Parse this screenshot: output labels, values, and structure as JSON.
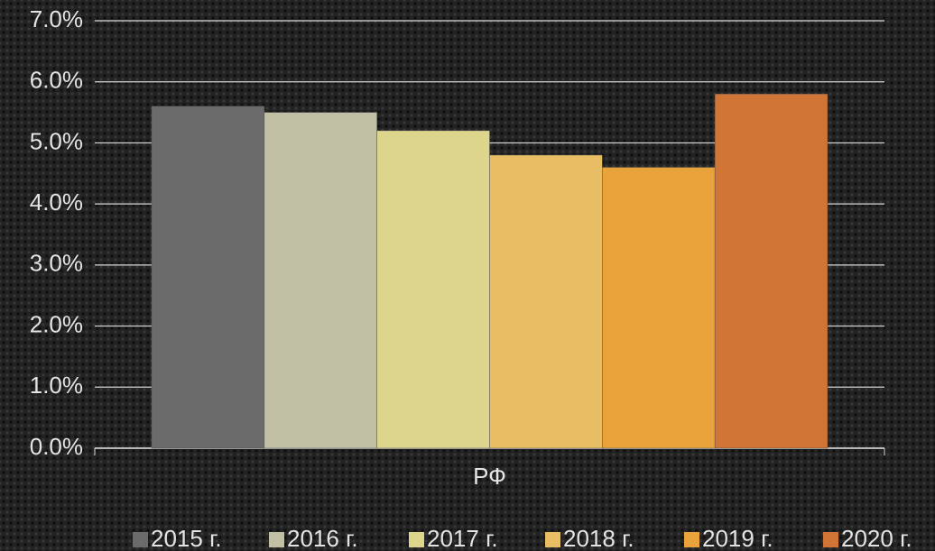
{
  "chart_data": {
    "type": "bar",
    "categories": [
      "РФ"
    ],
    "series": [
      {
        "name": "2015 г.",
        "color": "#6b6b6b",
        "values": [
          5.6
        ]
      },
      {
        "name": "2016 г.",
        "color": "#c1c0a5",
        "values": [
          5.5
        ]
      },
      {
        "name": "2017 г.",
        "color": "#ddd58c",
        "values": [
          5.2
        ]
      },
      {
        "name": "2018 г.",
        "color": "#e8bd63",
        "values": [
          4.8
        ]
      },
      {
        "name": "2019 г.",
        "color": "#e9a33a",
        "values": [
          4.6
        ]
      },
      {
        "name": "2020 г.",
        "color": "#d07535",
        "values": [
          5.8
        ]
      }
    ],
    "ylim": [
      0,
      7
    ],
    "yticks": [
      {
        "value": 0,
        "label": "0.0%"
      },
      {
        "value": 1,
        "label": "1.0%"
      },
      {
        "value": 2,
        "label": "2.0%"
      },
      {
        "value": 3,
        "label": "3.0%"
      },
      {
        "value": 4,
        "label": "4.0%"
      },
      {
        "value": 5,
        "label": "5.0%"
      },
      {
        "value": 6,
        "label": "6.0%"
      },
      {
        "value": 7,
        "label": "7.0%"
      }
    ],
    "grid": true,
    "legend": "bottom"
  }
}
